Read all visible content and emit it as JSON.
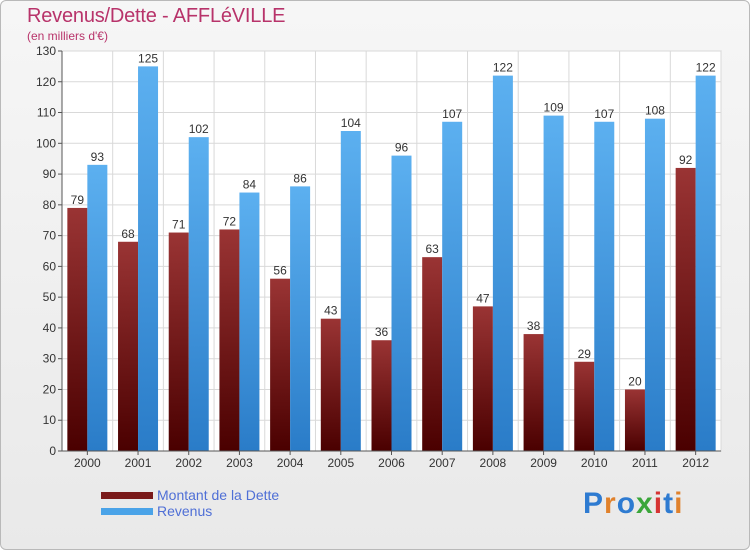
{
  "header": {
    "title": "Revenus/Dette - AFFLéVILLE",
    "subtitle": "(en milliers d'€)"
  },
  "legend": {
    "items": [
      {
        "label": "Montant de la Dette",
        "color": "#7a1a1a"
      },
      {
        "label": "Revenus",
        "color": "#4aa3e8"
      }
    ]
  },
  "logo": {
    "text": "Proxiti",
    "colors": [
      "#2e7bd1",
      "#e0812b",
      "#2e7bd1",
      "#3aa63a",
      "#d63333",
      "#2e7bd1",
      "#e0812b"
    ]
  },
  "chart_data": {
    "type": "bar",
    "title": "Revenus/Dette - AFFLéVILLE",
    "subtitle": "(en milliers d'€)",
    "categories": [
      "2000",
      "2001",
      "2002",
      "2003",
      "2004",
      "2005",
      "2006",
      "2007",
      "2008",
      "2009",
      "2010",
      "2011",
      "2012"
    ],
    "series": [
      {
        "name": "Montant de la Dette",
        "color": "#7a1a1a",
        "values": [
          79,
          68,
          71,
          72,
          56,
          43,
          36,
          63,
          47,
          38,
          29,
          20,
          92
        ]
      },
      {
        "name": "Revenus",
        "color": "#4aa3e8",
        "values": [
          93,
          125,
          102,
          84,
          86,
          104,
          96,
          107,
          122,
          109,
          107,
          108,
          122
        ]
      }
    ],
    "ylim": [
      0,
      130
    ],
    "yticks": [
      0,
      10,
      20,
      30,
      40,
      50,
      60,
      70,
      80,
      90,
      100,
      110,
      120,
      130
    ],
    "grid": true,
    "legend_position": "bottom-left"
  }
}
